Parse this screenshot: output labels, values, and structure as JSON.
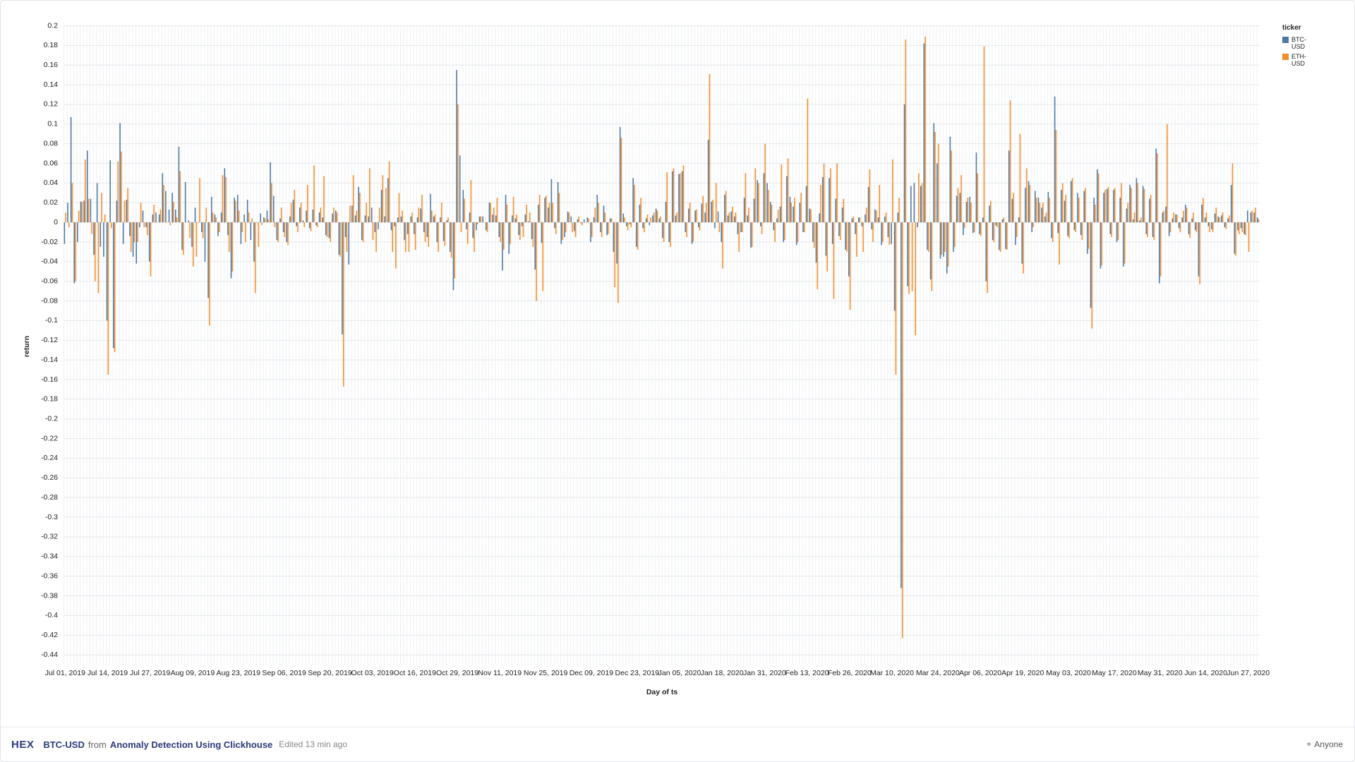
{
  "chart_data": {
    "type": "bar",
    "x_label": "Day of ts",
    "y_label": "return",
    "legend_title": "ticker",
    "categories": [
      "Jul 01, 2019",
      null,
      null,
      null,
      null,
      null,
      null,
      null,
      null,
      null,
      null,
      null,
      null,
      "Jul 14, 2019",
      null,
      null,
      null,
      null,
      null,
      null,
      null,
      null,
      null,
      null,
      null,
      null,
      "Jul 27, 2019",
      null,
      null,
      null,
      null,
      null,
      null,
      null,
      null,
      null,
      null,
      null,
      null,
      "Aug 09, 2019",
      null,
      null,
      null,
      null,
      null,
      null,
      null,
      null,
      null,
      null,
      null,
      null,
      null,
      "Aug 23, 2019",
      null,
      null,
      null,
      null,
      null,
      null,
      null,
      null,
      null,
      null,
      null,
      null,
      null,
      "Sep 06, 2019",
      null,
      null,
      null,
      null,
      null,
      null,
      null,
      null,
      null,
      null,
      null,
      null,
      null,
      "Sep 20, 2019",
      null,
      null,
      null,
      null,
      null,
      null,
      null,
      null,
      null,
      null,
      null,
      null,
      "Oct 03, 2019",
      null,
      null,
      null,
      null,
      null,
      null,
      null,
      null,
      null,
      null,
      null,
      null,
      "Oct 16, 2019",
      null,
      null,
      null,
      null,
      null,
      null,
      null,
      null,
      null,
      null,
      null,
      null,
      "Oct 29, 2019",
      null,
      null,
      null,
      null,
      null,
      null,
      null,
      null,
      null,
      null,
      null,
      null,
      "Nov 11, 2019",
      null,
      null,
      null,
      null,
      null,
      null,
      null,
      null,
      null,
      null,
      null,
      null,
      null,
      "Nov 25, 2019",
      null,
      null,
      null,
      null,
      null,
      null,
      null,
      null,
      null,
      null,
      null,
      null,
      null,
      "Dec 09, 2019",
      null,
      null,
      null,
      null,
      null,
      null,
      null,
      null,
      null,
      null,
      null,
      null,
      null,
      "Dec 23, 2019",
      null,
      null,
      null,
      null,
      null,
      null,
      null,
      null,
      null,
      null,
      null,
      null,
      "Jan 05, 2020",
      null,
      null,
      null,
      null,
      null,
      null,
      null,
      null,
      null,
      null,
      null,
      null,
      "Jan 18, 2020",
      null,
      null,
      null,
      null,
      null,
      null,
      null,
      null,
      null,
      null,
      null,
      null,
      "Jan 31, 2020",
      null,
      null,
      null,
      null,
      null,
      null,
      null,
      null,
      null,
      null,
      null,
      null,
      "Feb 13, 2020",
      null,
      null,
      null,
      null,
      null,
      null,
      null,
      null,
      null,
      null,
      null,
      null,
      "Feb 26, 2020",
      null,
      null,
      null,
      null,
      null,
      null,
      null,
      null,
      null,
      null,
      null,
      null,
      "Mar 10, 2020",
      null,
      null,
      null,
      null,
      null,
      null,
      null,
      null,
      null,
      null,
      null,
      null,
      null,
      "Mar 24, 2020",
      null,
      null,
      null,
      null,
      null,
      null,
      null,
      null,
      null,
      null,
      null,
      null,
      "Apr 06, 2020",
      null,
      null,
      null,
      null,
      null,
      null,
      null,
      null,
      null,
      null,
      null,
      null,
      "Apr 19, 2020",
      null,
      null,
      null,
      null,
      null,
      null,
      null,
      null,
      null,
      null,
      null,
      null,
      null,
      "May 03, 2020",
      null,
      null,
      null,
      null,
      null,
      null,
      null,
      null,
      null,
      null,
      null,
      null,
      null,
      "May 17, 2020",
      null,
      null,
      null,
      null,
      null,
      null,
      null,
      null,
      null,
      null,
      null,
      null,
      null,
      "May 31, 2020",
      null,
      null,
      null,
      null,
      null,
      null,
      null,
      null,
      null,
      null,
      null,
      null,
      null,
      "Jun 14, 2020",
      null,
      null,
      null,
      null,
      null,
      null,
      null,
      null,
      null,
      null,
      null,
      null,
      "Jun 27, 2020",
      null,
      null,
      null
    ],
    "series": [
      {
        "name": "BTC-USD",
        "color": "#4e79a7",
        "values": [
          -0.022,
          0.02,
          0.107,
          -0.062,
          -0.02,
          0.021,
          0.022,
          0.073,
          0.024,
          -0.033,
          0.04,
          -0.025,
          -0.035,
          -0.1,
          0.063,
          -0.128,
          0.022,
          0.101,
          -0.022,
          0.023,
          -0.014,
          -0.035,
          -0.042,
          -0.005,
          0.012,
          -0.005,
          -0.04,
          0.008,
          0.01,
          0.008,
          0.05,
          0.032,
          0.013,
          0.03,
          0.013,
          0.077,
          -0.028,
          0.041,
          0.002,
          -0.025,
          0.015,
          0.0,
          -0.01,
          -0.04,
          -0.077,
          0.026,
          0.008,
          -0.014,
          0.01,
          0.055,
          -0.013,
          -0.057,
          0.025,
          0.028,
          -0.022,
          0.008,
          0.023,
          -0.018,
          -0.04,
          0.0,
          0.009,
          0.005,
          0.012,
          0.061,
          0.027,
          -0.018,
          0.004,
          -0.01,
          -0.02,
          0.006,
          0.023,
          -0.004,
          0.015,
          0.002,
          0.012,
          -0.006,
          0.013,
          -0.003,
          0.01,
          0.005,
          -0.013,
          -0.016,
          0.009,
          0.012,
          -0.033,
          -0.114,
          -0.015,
          -0.043,
          0.017,
          0.007,
          0.036,
          -0.018,
          0.007,
          0.006,
          0.015,
          -0.01,
          -0.007,
          0.033,
          0.006,
          0.045,
          -0.008,
          -0.004,
          0.005,
          0.006,
          -0.018,
          -0.012,
          0.006,
          -0.012,
          0.005,
          0.014,
          -0.01,
          -0.015,
          0.029,
          0.006,
          -0.02,
          0.005,
          -0.019,
          0.002,
          -0.03,
          -0.069,
          0.155,
          0.068,
          0.033,
          -0.007,
          0.01,
          -0.016,
          -0.008,
          0.006,
          0.006,
          -0.008,
          0.02,
          0.008,
          0.007,
          -0.015,
          -0.049,
          0.028,
          -0.032,
          0.007,
          0.004,
          -0.013,
          -0.004,
          0.008,
          0.001,
          -0.017,
          -0.048,
          0.018,
          -0.021,
          0.025,
          0.015,
          0.044,
          -0.006,
          0.041,
          -0.022,
          -0.015,
          0.011,
          0.006,
          -0.009,
          0.003,
          -0.001,
          0.003,
          0.005,
          -0.02,
          0.005,
          0.028,
          -0.01,
          0.017,
          -0.013,
          0.004,
          -0.03,
          -0.042,
          0.097,
          0.009,
          -0.004,
          -0.002,
          0.045,
          -0.025,
          0.018,
          -0.006,
          0.004,
          -0.003,
          0.007,
          0.014,
          0.004,
          -0.016,
          0.021,
          -0.02,
          0.052,
          0.007,
          0.049,
          0.052,
          -0.01,
          0.014,
          -0.022,
          0.012,
          -0.005,
          0.019,
          0.01,
          0.084,
          0.021,
          -0.006,
          0.011,
          -0.02,
          0.028,
          0.007,
          0.011,
          0.006,
          -0.012,
          -0.01,
          0.025,
          0.007,
          -0.026,
          0.024,
          0.043,
          -0.004,
          0.05,
          0.04,
          0.021,
          -0.008,
          0.004,
          0.016,
          -0.02,
          0.047,
          0.026,
          0.016,
          -0.023,
          0.02,
          -0.01,
          0.037,
          0.014,
          -0.02,
          -0.041,
          0.009,
          0.046,
          -0.034,
          0.045,
          -0.022,
          0.024,
          -0.014,
          0.015,
          -0.028,
          -0.055,
          0.004,
          -0.012,
          0.005,
          -0.004,
          0.008,
          0.036,
          -0.007,
          0.013,
          0.005,
          -0.023,
          0.006,
          -0.015,
          -0.022,
          -0.09,
          0.01,
          -0.372,
          0.12,
          -0.065,
          0.037,
          0.04,
          -0.005,
          0.037,
          0.182,
          -0.028,
          -0.058,
          0.101,
          0.06,
          -0.037,
          -0.035,
          -0.052,
          0.087,
          -0.03,
          0.027,
          0.03,
          -0.013,
          0.021,
          0.026,
          -0.011,
          0.071,
          -0.012,
          0.005,
          -0.06,
          0.017,
          -0.018,
          -0.003,
          -0.028,
          0.003,
          -0.027,
          0.073,
          0.024,
          -0.023,
          0.005,
          -0.042,
          0.035,
          0.042,
          -0.01,
          0.032,
          0.025,
          0.015,
          0.006,
          0.031,
          -0.016,
          0.128,
          -0.011,
          0.033,
          0.022,
          -0.014,
          0.042,
          -0.008,
          0.03,
          -0.013,
          0.032,
          -0.032,
          -0.087,
          0.025,
          0.054,
          -0.047,
          0.03,
          0.034,
          -0.012,
          0.033,
          -0.02,
          0.025,
          -0.045,
          0.014,
          0.038,
          0.003,
          0.045,
          0.002,
          0.037,
          -0.012,
          0.024,
          -0.015,
          0.075,
          -0.062,
          0.01,
          0.016,
          -0.014,
          0.004,
          0.008,
          -0.006,
          0.005,
          0.018,
          -0.012,
          0.004,
          -0.008,
          -0.055,
          0.018,
          0.005,
          -0.004,
          -0.007,
          0.009,
          0.006,
          0.007,
          -0.005,
          0.004,
          0.038,
          -0.032,
          -0.008,
          -0.006,
          -0.012,
          0.012,
          0.01,
          0.01,
          0.005
        ]
      },
      {
        "name": "ETH-USD",
        "color": "#f28e2b",
        "values": [
          0.01,
          -0.005,
          0.04,
          -0.06,
          0.012,
          0.021,
          0.064,
          0.024,
          -0.012,
          -0.06,
          -0.072,
          0.03,
          0.008,
          -0.155,
          -0.006,
          -0.132,
          0.062,
          0.072,
          0.022,
          0.035,
          -0.03,
          -0.02,
          -0.02,
          0.02,
          -0.005,
          -0.013,
          -0.055,
          0.018,
          0.0,
          0.013,
          0.038,
          0.0,
          -0.003,
          0.021,
          0.005,
          0.052,
          -0.033,
          0.0,
          -0.016,
          -0.045,
          -0.035,
          0.045,
          -0.016,
          0.015,
          -0.105,
          0.01,
          0.005,
          -0.01,
          0.048,
          0.046,
          -0.03,
          -0.05,
          0.022,
          0.012,
          -0.01,
          -0.02,
          0.01,
          0.004,
          -0.072,
          -0.025,
          -0.003,
          0.004,
          0.003,
          0.04,
          -0.005,
          -0.02,
          0.015,
          -0.015,
          -0.023,
          0.02,
          0.033,
          -0.01,
          0.02,
          -0.005,
          0.038,
          -0.009,
          0.058,
          -0.005,
          0.015,
          0.047,
          -0.015,
          -0.02,
          0.015,
          0.01,
          -0.035,
          -0.167,
          -0.03,
          0.017,
          0.048,
          0.012,
          0.03,
          -0.02,
          0.02,
          0.055,
          -0.018,
          -0.03,
          0.015,
          0.048,
          0.035,
          0.062,
          -0.03,
          -0.047,
          0.03,
          0.012,
          -0.03,
          -0.03,
          0.01,
          -0.028,
          0.015,
          0.028,
          -0.02,
          -0.025,
          0.012,
          0.008,
          -0.03,
          0.02,
          -0.024,
          0.005,
          -0.036,
          -0.057,
          0.12,
          -0.01,
          0.024,
          -0.022,
          0.043,
          -0.03,
          -0.002,
          0.006,
          0.0,
          -0.01,
          0.02,
          0.015,
          0.025,
          -0.02,
          -0.028,
          0.018,
          -0.022,
          0.026,
          0.008,
          -0.018,
          -0.015,
          0.018,
          0.01,
          -0.025,
          -0.08,
          0.028,
          -0.07,
          0.027,
          0.02,
          0.02,
          -0.012,
          0.03,
          -0.018,
          -0.01,
          0.01,
          -0.01,
          -0.015,
          0.006,
          -0.003,
          0.0,
          0.004,
          -0.015,
          0.015,
          0.02,
          -0.015,
          0.01,
          -0.012,
          0.004,
          -0.066,
          -0.082,
          0.086,
          0.005,
          -0.008,
          -0.005,
          0.038,
          -0.028,
          0.025,
          -0.01,
          0.008,
          0.005,
          0.01,
          0.012,
          0.006,
          -0.02,
          0.051,
          -0.025,
          0.055,
          0.01,
          0.05,
          0.058,
          -0.015,
          0.02,
          -0.02,
          0.013,
          -0.008,
          0.027,
          0.02,
          0.151,
          0.023,
          0.04,
          -0.01,
          -0.047,
          0.032,
          0.01,
          0.016,
          0.01,
          -0.03,
          -0.01,
          0.05,
          0.015,
          -0.025,
          0.055,
          0.04,
          -0.012,
          0.08,
          0.033,
          0.018,
          -0.02,
          0.013,
          0.059,
          -0.018,
          0.065,
          0.02,
          0.025,
          -0.02,
          0.03,
          -0.01,
          0.126,
          0.013,
          -0.026,
          -0.068,
          0.038,
          0.06,
          -0.05,
          0.055,
          -0.078,
          0.06,
          -0.018,
          0.024,
          -0.03,
          -0.089,
          0.006,
          -0.035,
          0.005,
          -0.03,
          0.015,
          0.054,
          -0.02,
          0.012,
          0.038,
          -0.02,
          0.01,
          -0.023,
          0.064,
          -0.155,
          0.025,
          -0.423,
          0.186,
          -0.073,
          -0.07,
          -0.115,
          0.05,
          0.04,
          0.189,
          -0.03,
          -0.07,
          0.092,
          0.08,
          -0.033,
          -0.03,
          -0.045,
          0.073,
          -0.025,
          0.035,
          0.048,
          -0.006,
          0.025,
          0.02,
          -0.01,
          0.05,
          -0.014,
          0.179,
          -0.072,
          0.022,
          -0.02,
          -0.005,
          -0.03,
          0.005,
          -0.028,
          0.124,
          0.03,
          -0.015,
          0.09,
          -0.052,
          0.055,
          0.038,
          -0.005,
          0.025,
          0.02,
          0.02,
          0.01,
          0.025,
          -0.02,
          0.094,
          -0.043,
          0.04,
          0.028,
          -0.016,
          0.045,
          -0.01,
          0.025,
          -0.018,
          0.035,
          -0.027,
          -0.108,
          0.018,
          0.05,
          -0.044,
          0.033,
          0.036,
          -0.015,
          0.035,
          -0.018,
          0.04,
          -0.042,
          0.02,
          0.035,
          0.01,
          0.04,
          0.005,
          0.034,
          -0.015,
          0.028,
          -0.018,
          0.07,
          -0.055,
          0.012,
          0.1,
          -0.01,
          0.01,
          0.008,
          -0.01,
          0.012,
          0.015,
          -0.016,
          0.01,
          -0.01,
          -0.063,
          0.025,
          0.01,
          -0.01,
          -0.01,
          0.015,
          0.005,
          0.01,
          -0.007,
          0.007,
          0.06,
          -0.034,
          -0.012,
          -0.01,
          -0.013,
          -0.03,
          0.012,
          0.015,
          0.003
        ]
      }
    ],
    "ylim": [
      -0.45,
      0.2
    ],
    "yticks": [
      0.2,
      0.18,
      0.16,
      0.14,
      0.12,
      0.1,
      0.08,
      0.06,
      0.04,
      0.02,
      0,
      -0.02,
      -0.04,
      -0.06,
      -0.08,
      -0.1,
      -0.12,
      -0.14,
      -0.16,
      -0.18,
      -0.2,
      -0.22,
      -0.24,
      -0.26,
      -0.28,
      -0.3,
      -0.32,
      -0.34,
      -0.36,
      -0.38,
      -0.4,
      -0.42,
      -0.44
    ],
    "grid": true
  },
  "footer": {
    "logo": "HEX",
    "cell": "BTC-USD",
    "from": "from",
    "project": "Anomaly Detection Using Clickhouse",
    "edited": "Edited 13 min ago",
    "sharing": "Anyone"
  }
}
